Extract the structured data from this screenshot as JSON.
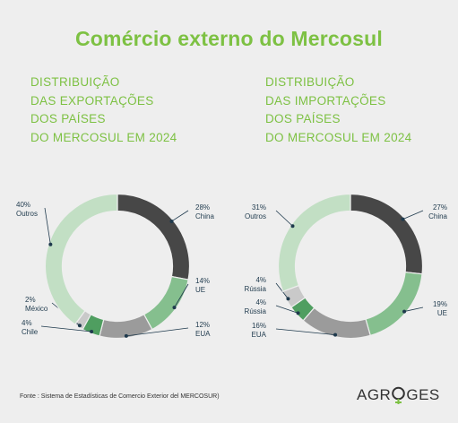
{
  "title": "Comércio externo do Mercosul",
  "chart_data": [
    {
      "type": "pie",
      "heading": [
        "DISTRIBUIÇÃO",
        "DAS EXPORTAÇÕES",
        "DOS PAÍSES",
        "DO MERCOSUL EM 2024"
      ],
      "slices": [
        {
          "label": "China",
          "pct": "28%",
          "value": 28,
          "color": "#474747"
        },
        {
          "label": "UE",
          "pct": "14%",
          "value": 14,
          "color": "#85bf8e"
        },
        {
          "label": "EUA",
          "pct": "12%",
          "value": 12,
          "color": "#9b9b9b"
        },
        {
          "label": "Chile",
          "pct": "4%",
          "value": 4,
          "color": "#4f9e60"
        },
        {
          "label": "México",
          "pct": "2%",
          "value": 2,
          "color": "#c9c9c9"
        },
        {
          "label": "Outros",
          "pct": "40%",
          "value": 40,
          "color": "#c2dfc4"
        }
      ]
    },
    {
      "type": "pie",
      "heading": [
        "DISTRIBUIÇÃO",
        "DAS IMPORTAÇÕES",
        "DOS PAÍSES",
        "DO MERCOSUL EM 2024"
      ],
      "slices": [
        {
          "label": "China",
          "pct": "27%",
          "value": 27,
          "color": "#474747"
        },
        {
          "label": "UE",
          "pct": "19%",
          "value": 19,
          "color": "#85bf8e"
        },
        {
          "label": "EUA",
          "pct": "16%",
          "value": 16,
          "color": "#9b9b9b"
        },
        {
          "label": "Rússia",
          "pct": "4%",
          "value": 4,
          "color": "#4f9e60"
        },
        {
          "label": "Rússia",
          "pct": "4%",
          "value": 4,
          "color": "#c9c9c9"
        },
        {
          "label": "Outros",
          "pct": "31%",
          "value": 31,
          "color": "#c2dfc4"
        }
      ]
    }
  ],
  "source": "Fonte : Sistema de Estadísticas de Comercio Exterior del MERCOSUR)",
  "logo": {
    "left": "AGR",
    "right": "GES",
    "colors": {
      "dark": "#333333",
      "green": "#7dc143"
    }
  }
}
